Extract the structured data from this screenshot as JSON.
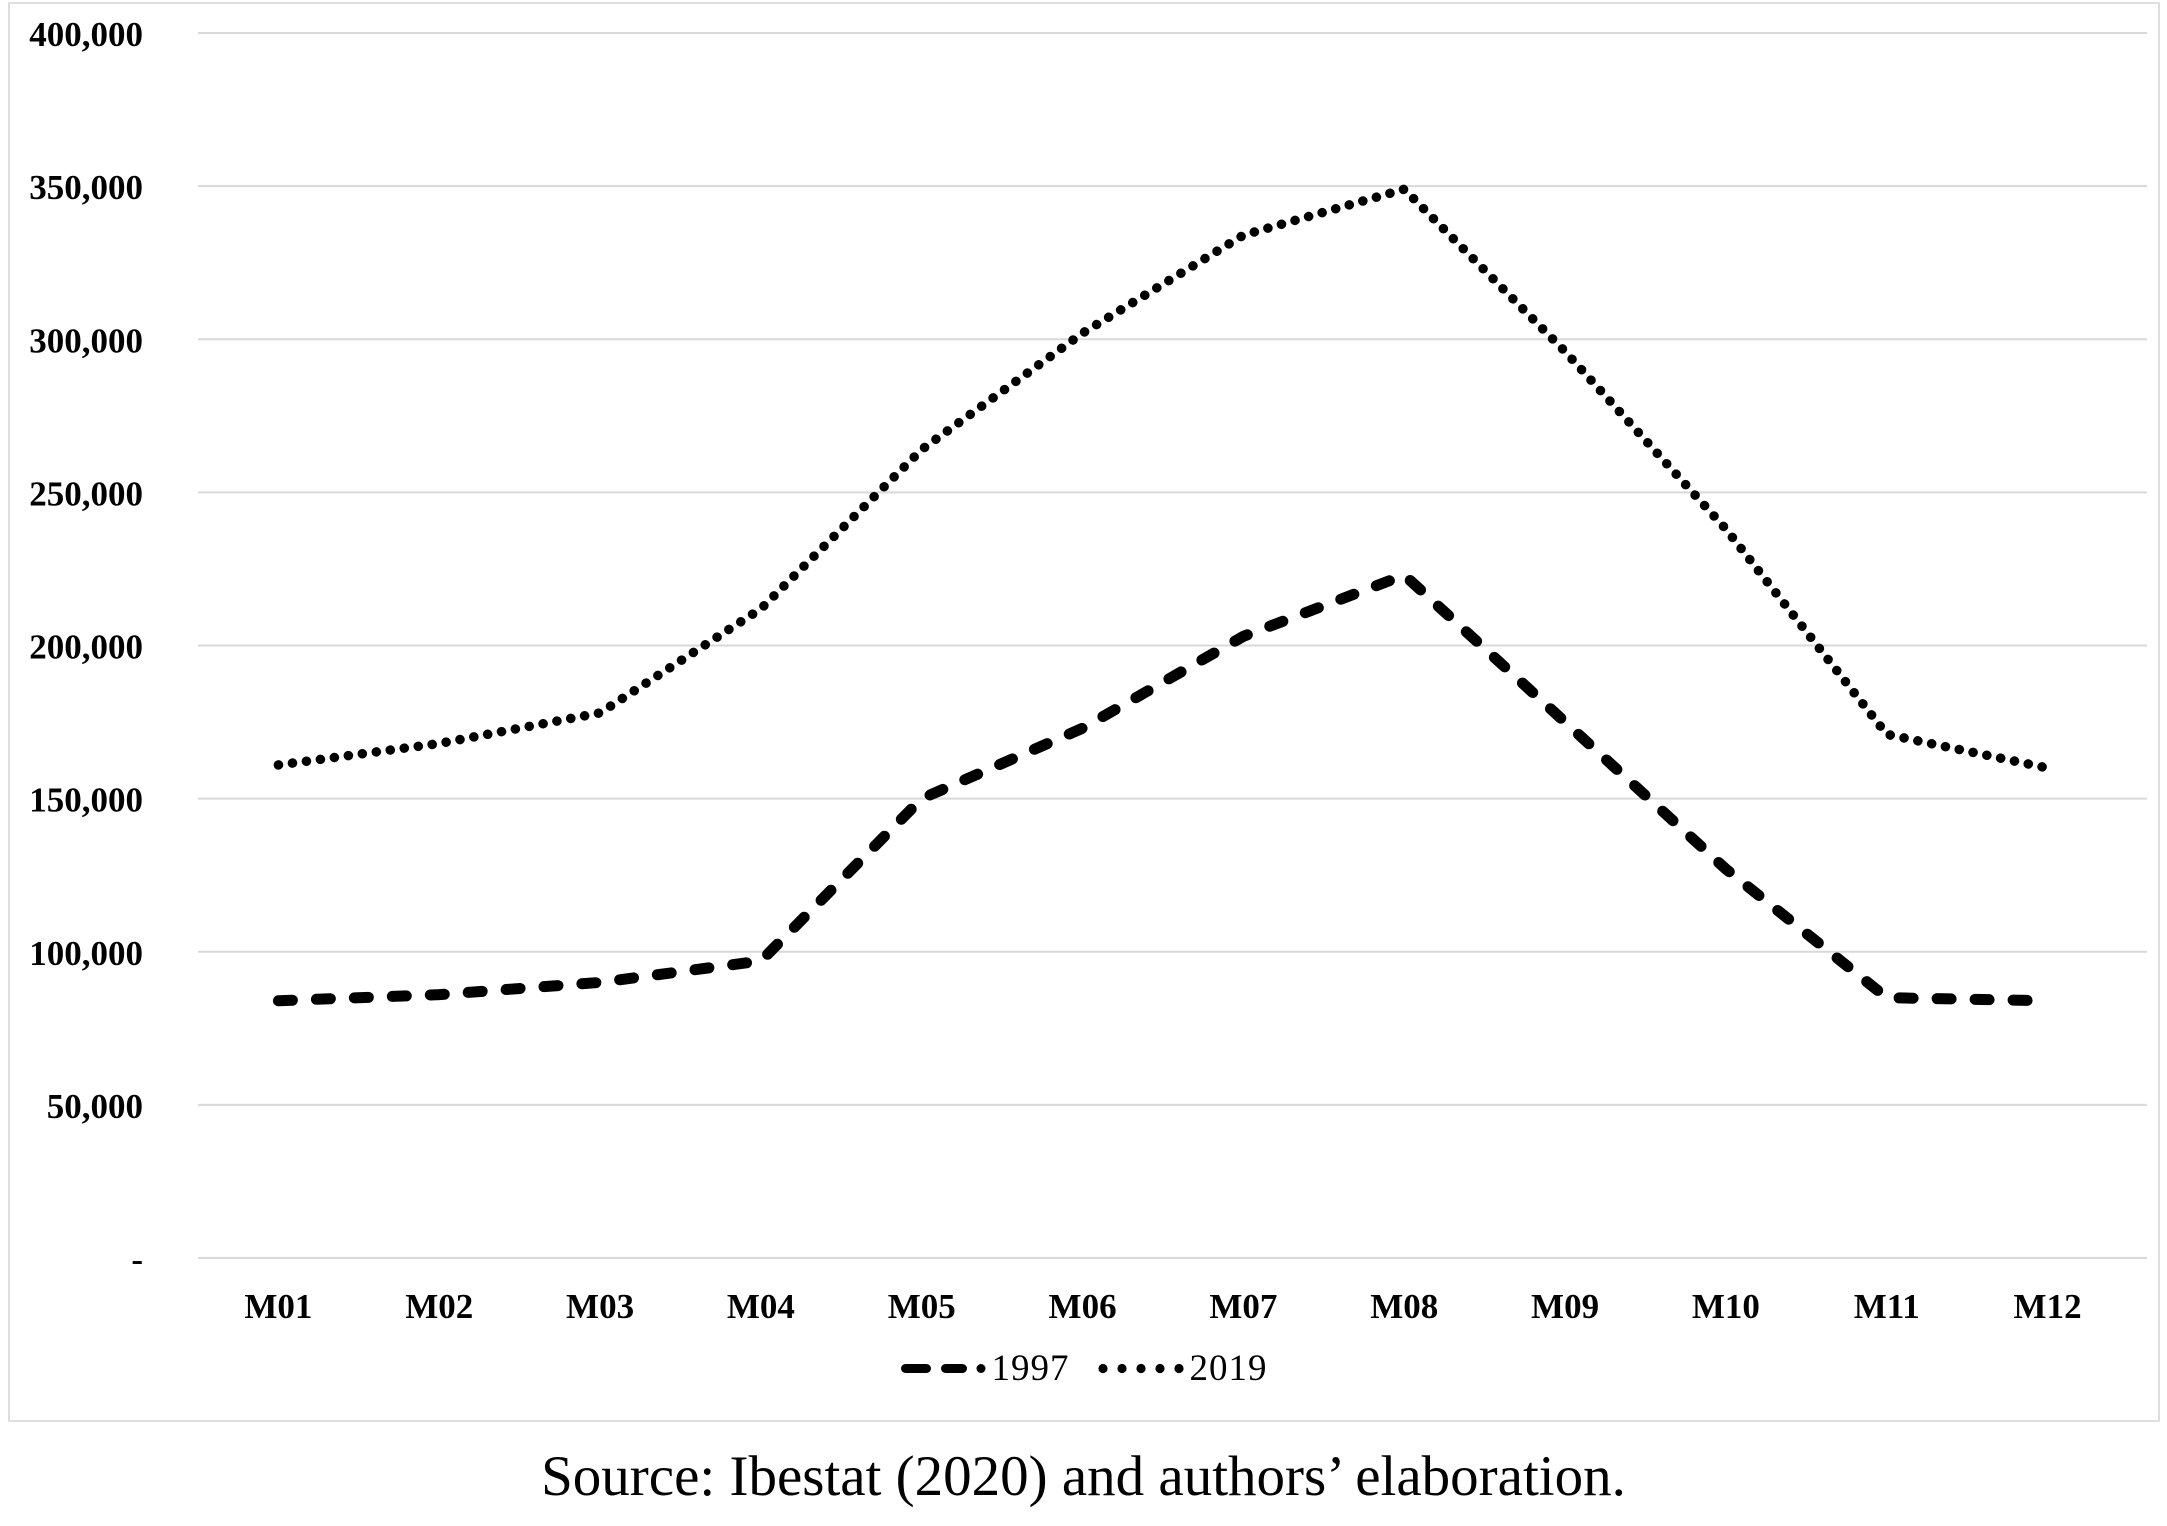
{
  "chart_data": {
    "type": "line",
    "title": "",
    "categories": [
      "M01",
      "M02",
      "M03",
      "M04",
      "M05",
      "M06",
      "M07",
      "M08",
      "M09",
      "M10",
      "M11",
      "M12"
    ],
    "series": [
      {
        "name": "1997",
        "style": "dashed",
        "values": [
          84000,
          86000,
          90000,
          97000,
          150000,
          173000,
          203000,
          223000,
          175000,
          127000,
          85000,
          84000
        ]
      },
      {
        "name": "2019",
        "style": "dotted",
        "values": [
          161000,
          168000,
          178000,
          212000,
          264000,
          302000,
          334000,
          349000,
          296000,
          238000,
          171000,
          160000
        ]
      }
    ],
    "xlabel": "",
    "ylabel": "",
    "ylim": [
      0,
      400000
    ],
    "y_tick_step": 50000,
    "y_tick_labels": [
      "-",
      "50,000",
      "100,000",
      "150,000",
      "200,000",
      "250,000",
      "300,000",
      "350,000",
      "400,000"
    ],
    "grid": "horizontal",
    "legend_position": "bottom",
    "line_color": "#000000",
    "grid_color": "#d9d9d9",
    "text_color": "#000000"
  },
  "legend": {
    "items": [
      {
        "label": "1997",
        "marker": "dashed-line-icon"
      },
      {
        "label": "2019",
        "marker": "dotted-line-icon"
      }
    ]
  },
  "caption": "Source: Ibestat (2020) and authors’ elaboration."
}
